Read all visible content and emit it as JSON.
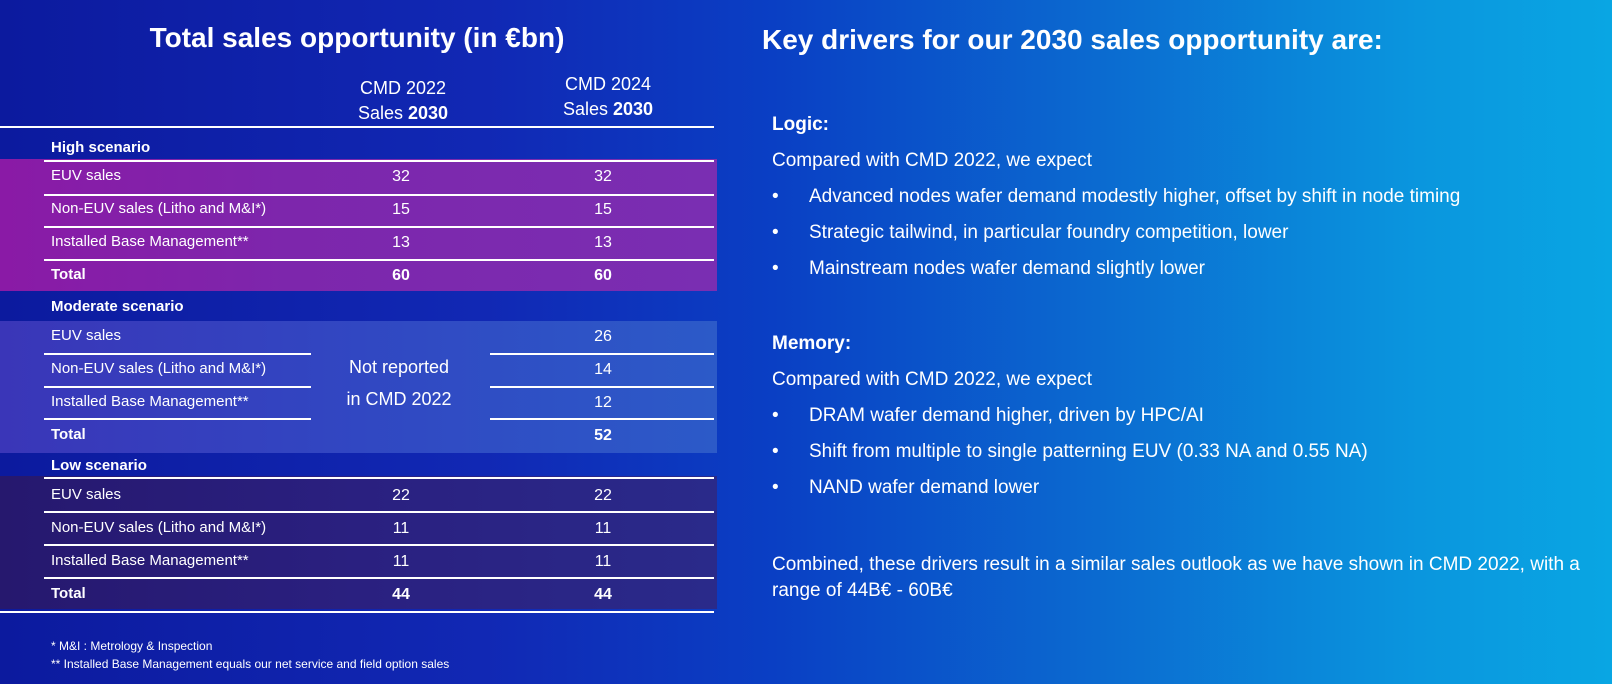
{
  "left_title": "Total sales opportunity (in €bn)",
  "columns": {
    "cmd2022_line1": "CMD 2022",
    "cmd2022_line2": "Sales ",
    "cmd2022_bold": "2030",
    "cmd2024_line1": "CMD 2024",
    "cmd2024_line2": "Sales ",
    "cmd2024_bold": "2030"
  },
  "high": {
    "heading": "High scenario",
    "rows": [
      {
        "label": "EUV sales",
        "cmd2022": "32",
        "cmd2024": "32"
      },
      {
        "label": "Non-EUV sales (Litho and M&I*)",
        "cmd2022": "15",
        "cmd2024": "15"
      },
      {
        "label": "Installed Base Management**",
        "cmd2022": "13",
        "cmd2024": "13"
      },
      {
        "label": "Total",
        "cmd2022": "60",
        "cmd2024": "60"
      }
    ]
  },
  "moderate": {
    "heading": "Moderate scenario",
    "not_reported_line1": "Not reported",
    "not_reported_line2": "in CMD 2022",
    "rows": [
      {
        "label": "EUV sales",
        "cmd2024": "26"
      },
      {
        "label": "Non-EUV sales (Litho and M&I*)",
        "cmd2024": "14"
      },
      {
        "label": "Installed Base Management**",
        "cmd2024": "12"
      },
      {
        "label": "Total",
        "cmd2024": "52"
      }
    ]
  },
  "low": {
    "heading": "Low scenario",
    "rows": [
      {
        "label": "EUV sales",
        "cmd2022": "22",
        "cmd2024": "22"
      },
      {
        "label": "Non-EUV sales (Litho and M&I*)",
        "cmd2022": "11",
        "cmd2024": "11"
      },
      {
        "label": "Installed Base Management**",
        "cmd2022": "11",
        "cmd2024": "11"
      },
      {
        "label": "Total",
        "cmd2022": "44",
        "cmd2024": "44"
      }
    ]
  },
  "footnotes": [
    "* M&I : Metrology & Inspection",
    "** Installed Base Management equals our net service and field option sales"
  ],
  "right_title": "Key drivers for our 2030 sales opportunity are:",
  "logic": {
    "heading": "Logic:",
    "intro": "Compared with CMD 2022, we expect",
    "bullets": [
      "Advanced nodes wafer demand modestly higher, offset by shift in node timing",
      "Strategic tailwind, in particular foundry competition, lower",
      "Mainstream nodes wafer demand slightly lower"
    ]
  },
  "memory": {
    "heading": "Memory:",
    "intro": "Compared with CMD 2022, we expect",
    "bullets": [
      "DRAM wafer demand higher, driven by HPC/AI",
      "Shift from multiple to single patterning EUV (0.33 NA and 0.55 NA)",
      "NAND wafer demand lower"
    ]
  },
  "bullet_char": "•",
  "combined": "Combined, these drivers result in a similar sales outlook as we have shown in CMD 2022, with a range of 44B€ - 60B€",
  "colors": {
    "high_band": "#7a24a8",
    "moderate_band": "#2f4fc4",
    "low_band": "#2a1f78"
  }
}
